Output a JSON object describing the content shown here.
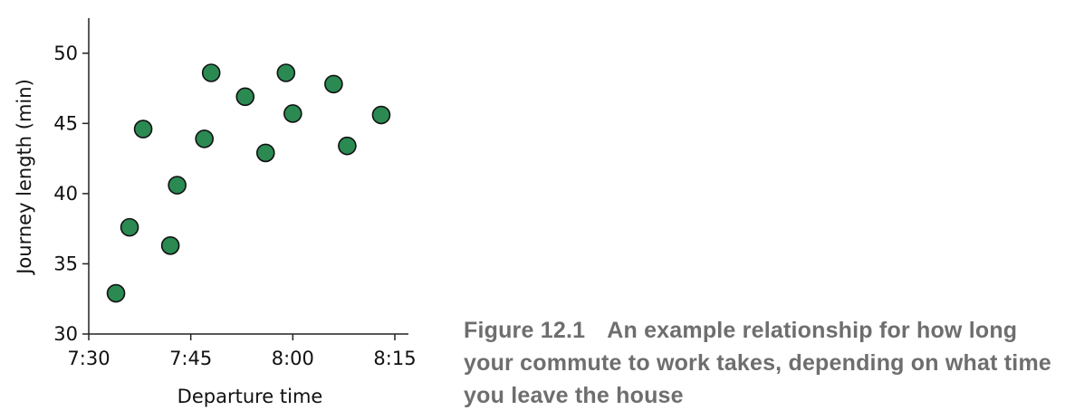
{
  "chart_data": {
    "type": "scatter",
    "xlabel": "Departure time",
    "ylabel": "Journey length (min)",
    "xticks": [
      "7:30",
      "7:45",
      "8:00",
      "8:15"
    ],
    "yticks": [
      "30",
      "35",
      "40",
      "45",
      "50"
    ],
    "xlim": [
      "7:30",
      "8:17"
    ],
    "ylim": [
      30,
      52.5
    ],
    "grid": false,
    "colors": {
      "marker_fill": "#2a8a52",
      "marker_edge": "#111111",
      "axis": "#222222"
    },
    "points": [
      {
        "x": "7:34",
        "y": 32.9
      },
      {
        "x": "7:36",
        "y": 37.6
      },
      {
        "x": "7:38",
        "y": 44.6
      },
      {
        "x": "7:42",
        "y": 36.3
      },
      {
        "x": "7:43",
        "y": 40.6
      },
      {
        "x": "7:47",
        "y": 43.9
      },
      {
        "x": "7:48",
        "y": 48.6
      },
      {
        "x": "7:53",
        "y": 46.9
      },
      {
        "x": "7:56",
        "y": 42.9
      },
      {
        "x": "7:59",
        "y": 48.6
      },
      {
        "x": "8:00",
        "y": 45.7
      },
      {
        "x": "8:06",
        "y": 47.8
      },
      {
        "x": "8:08",
        "y": 43.4
      },
      {
        "x": "8:13",
        "y": 45.6
      }
    ]
  },
  "caption": {
    "label": "Figure 12.1",
    "text": "An example relationship for how long your commute to work takes, depending on what time you leave the house"
  }
}
